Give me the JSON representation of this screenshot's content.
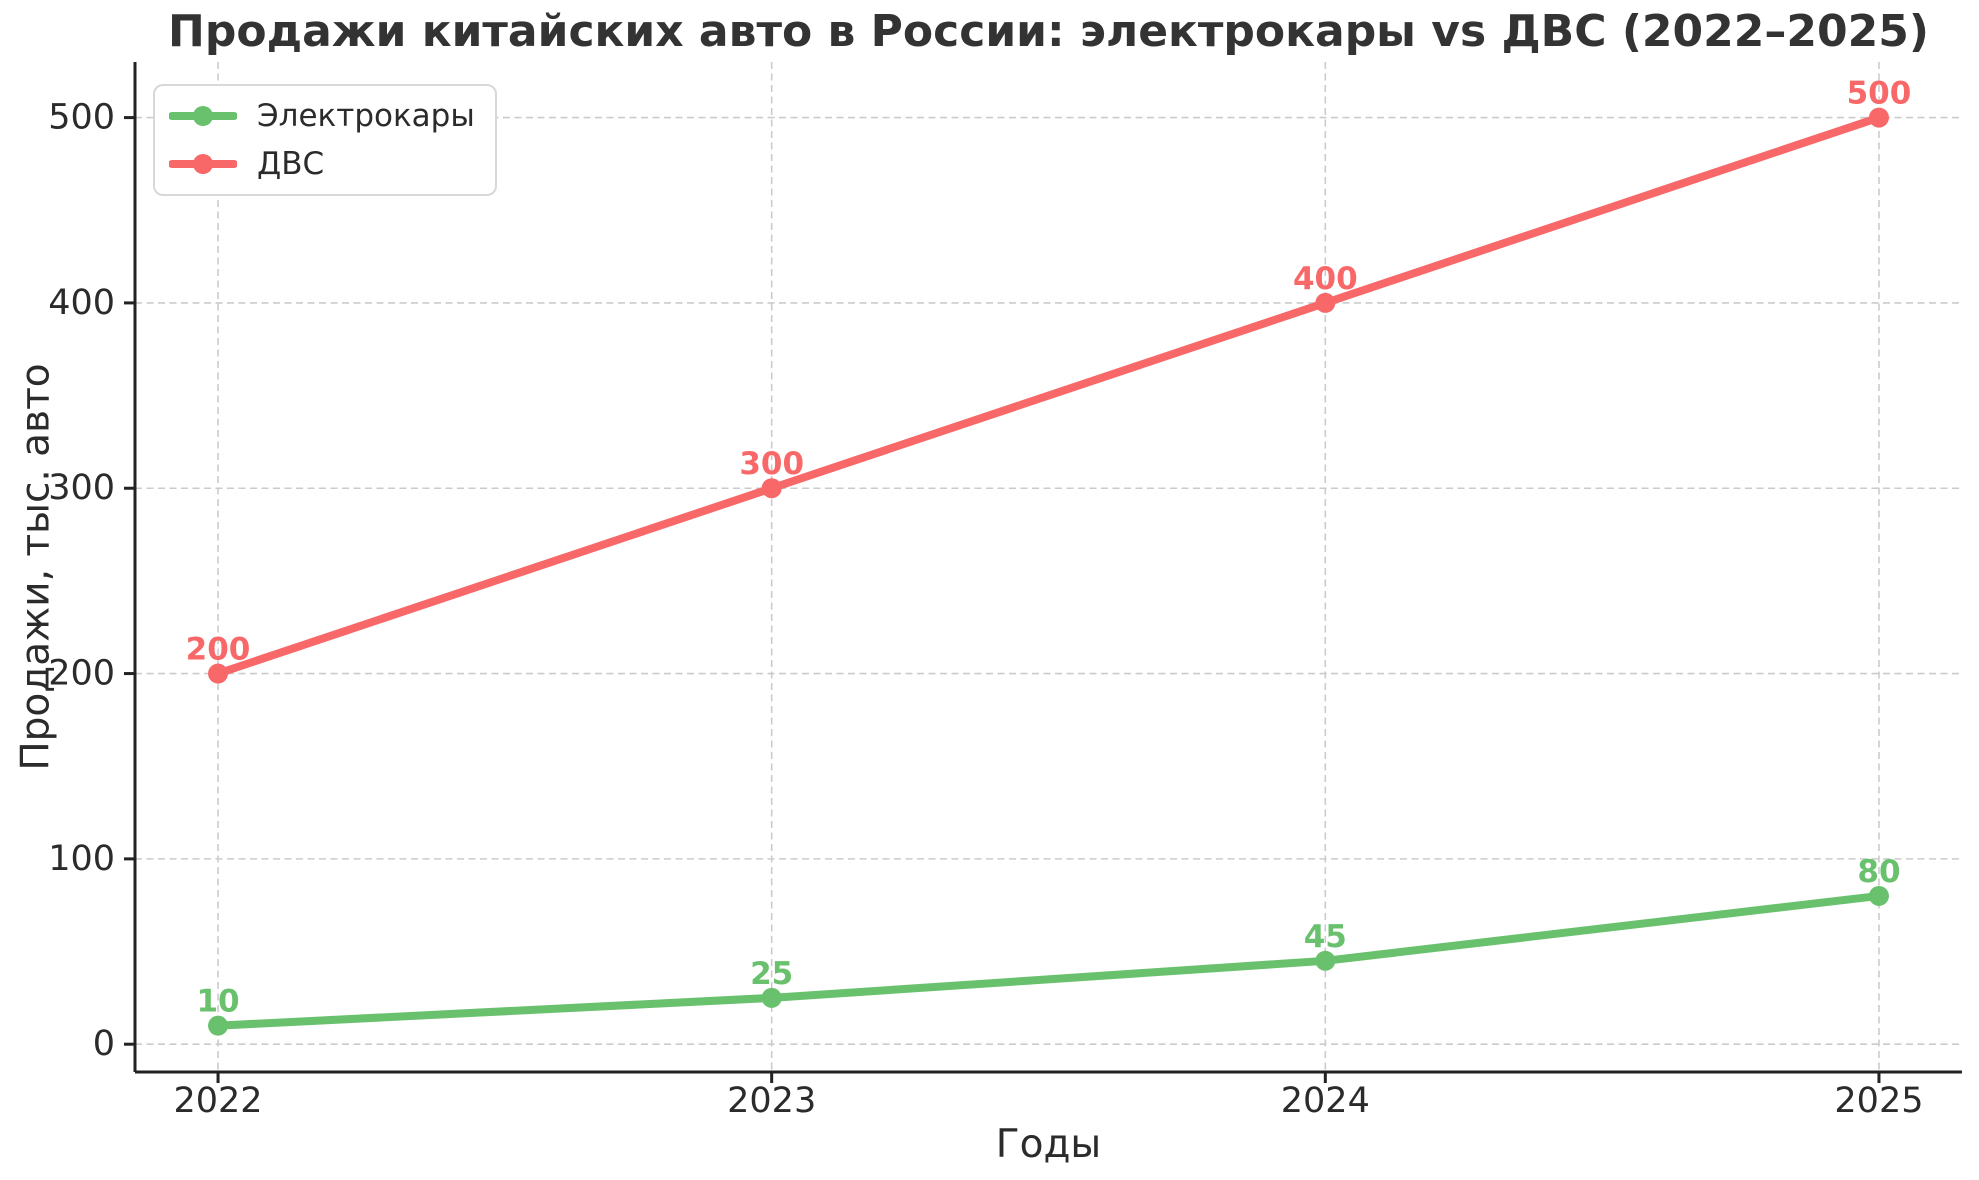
{
  "chart_data": {
    "type": "line",
    "title": "Продажи китайских авто в России: электрокары vs ДВС (2022–2025)",
    "xlabel": "Годы",
    "ylabel": "Продажи, тыс. авто",
    "x": [
      2022,
      2023,
      2024,
      2025
    ],
    "x_tick_labels": [
      "2022",
      "2023",
      "2024",
      "2025"
    ],
    "y_ticks": [
      0,
      100,
      200,
      300,
      400,
      500
    ],
    "xlim": [
      2021.85,
      2025.15
    ],
    "ylim": [
      -15,
      530
    ],
    "grid": true,
    "grid_style": "dashed",
    "legend_position": "upper-left",
    "series": [
      {
        "name": "Электрокары",
        "color": "#69C16E",
        "marker": "circle",
        "values": [
          10,
          25,
          45,
          80
        ],
        "point_labels": [
          "10",
          "25",
          "45",
          "80"
        ]
      },
      {
        "name": "ДВС",
        "color": "#F96868",
        "marker": "circle",
        "values": [
          200,
          300,
          400,
          500
        ],
        "point_labels": [
          "200",
          "300",
          "400",
          "500"
        ]
      }
    ]
  },
  "style": {
    "background": "#ffffff",
    "title_color": "#333333",
    "tick_color": "#2b2b2b",
    "grid_color": "#cbcbcb",
    "axis_color": "#222222",
    "legend_border": "#d8d8d8",
    "legend_bg": "#ffffff"
  }
}
